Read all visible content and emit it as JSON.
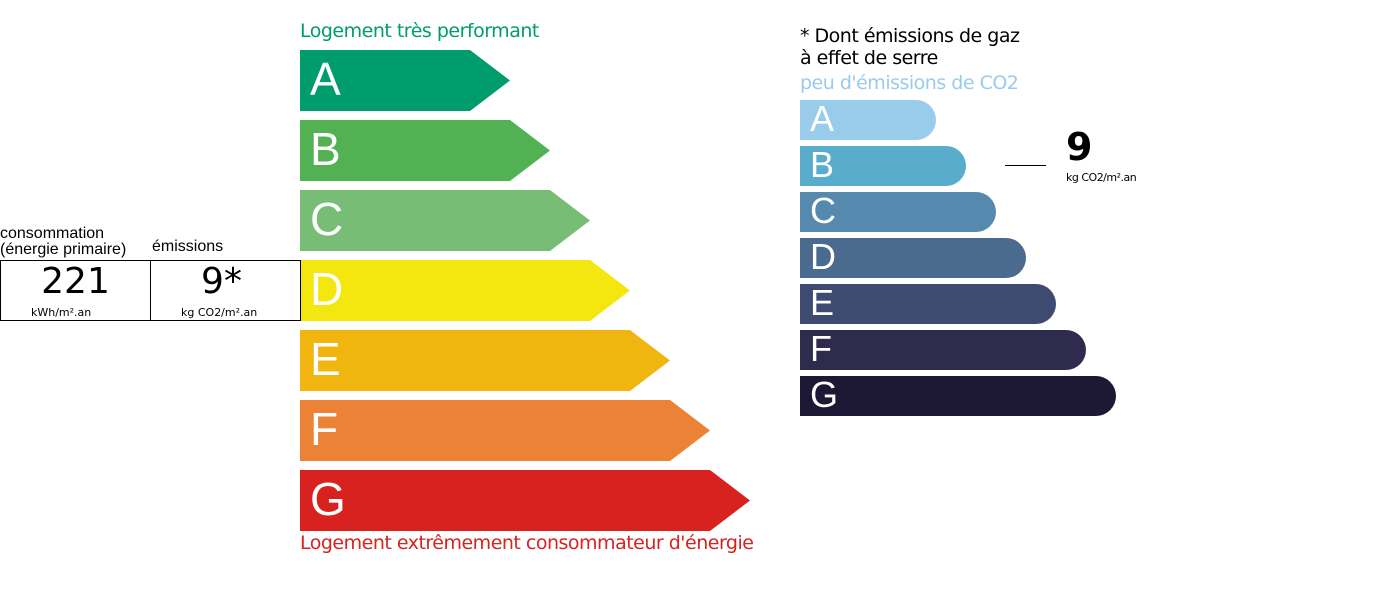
{
  "energy": {
    "top_label": "Logement très performant",
    "bottom_label": "Logement extrêmement consommateur d'énergie",
    "classes": [
      {
        "letter": "A",
        "color": "#009c6d"
      },
      {
        "letter": "B",
        "color": "#52b153"
      },
      {
        "letter": "C",
        "color": "#78bd76"
      },
      {
        "letter": "D",
        "color": "#f4e70f"
      },
      {
        "letter": "E",
        "color": "#f0b50f"
      },
      {
        "letter": "F",
        "color": "#eb8235"
      },
      {
        "letter": "G",
        "color": "#d7221f"
      }
    ],
    "current_class": "D"
  },
  "summary": {
    "consumption_label_1": "consommation",
    "consumption_label_2": "(énergie primaire)",
    "emissions_label": "émissions",
    "consumption_value": "221",
    "consumption_unit": "kWh/m².an",
    "emissions_value": "9*",
    "emissions_unit": "kg CO2/m².an"
  },
  "ges": {
    "note_line1": "* Dont émissions de gaz",
    "note_line2": "à effet de serre",
    "top_label": "peu d'émissions de CO2",
    "classes": [
      {
        "letter": "A",
        "color": "#99cbeb"
      },
      {
        "letter": "B",
        "color": "#5aaccd"
      },
      {
        "letter": "C",
        "color": "#5589ad"
      },
      {
        "letter": "D",
        "color": "#4a6a8e"
      },
      {
        "letter": "E",
        "color": "#3e4a70"
      },
      {
        "letter": "F",
        "color": "#2e2b4f"
      },
      {
        "letter": "G",
        "color": "#1d1834"
      }
    ],
    "current_class": "B",
    "value": "9",
    "unit": "kg CO2/m².an"
  }
}
